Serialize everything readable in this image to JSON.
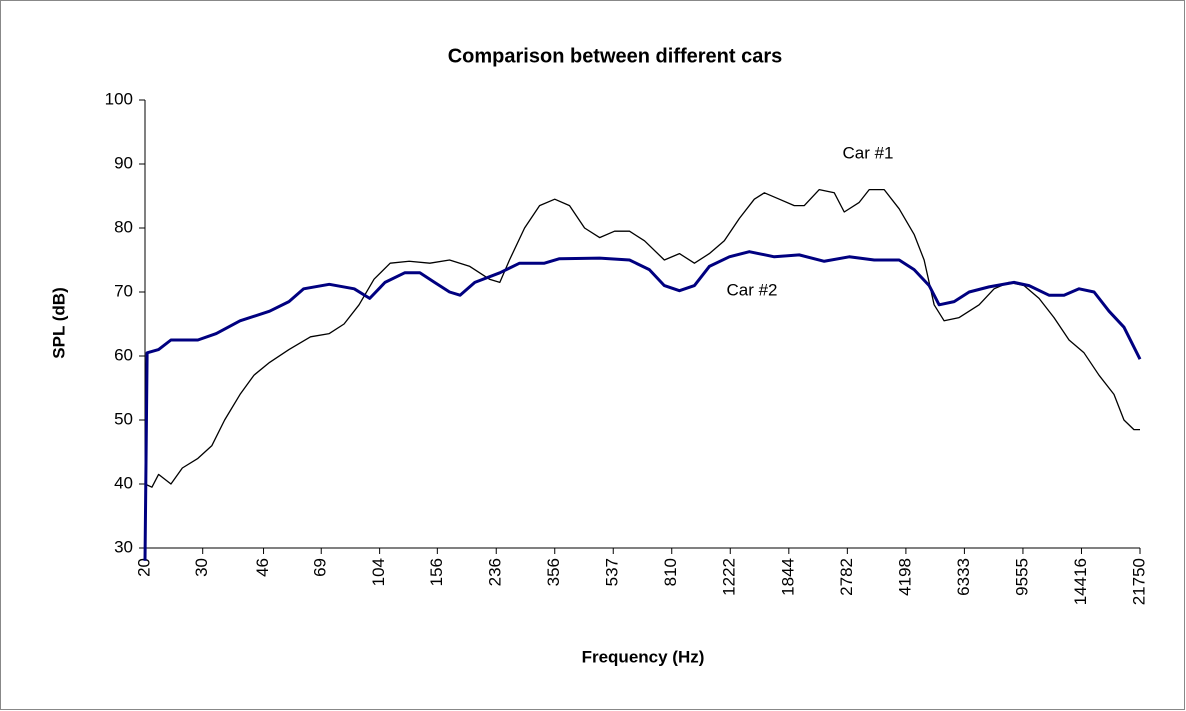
{
  "chart_data": {
    "type": "line",
    "title": "Comparison between different cars",
    "x_label": "Frequency (Hz)",
    "y_label": "SPL (dB)",
    "x_scale": "log",
    "xlim": [
      20,
      21750
    ],
    "xticks": [
      20,
      30,
      46,
      69,
      104,
      156,
      236,
      356,
      537,
      810,
      1222,
      1844,
      2782,
      4198,
      6333,
      9555,
      14416,
      21750
    ],
    "ylim": [
      30,
      100
    ],
    "yticks": [
      30,
      40,
      50,
      60,
      70,
      80,
      90,
      100
    ],
    "grid": false,
    "series": [
      {
        "name": "Car #1",
        "color": "#000000",
        "x": [
          20,
          21,
          22,
          24,
          26,
          29,
          32,
          35,
          39,
          43,
          48,
          55,
          64,
          73,
          81,
          90,
          100,
          112,
          128,
          148,
          170,
          196,
          225,
          242,
          259,
          288,
          320,
          356,
          395,
          439,
          488,
          542,
          602,
          669,
          769,
          855,
          950,
          1055,
          1172,
          1303,
          1447,
          1553,
          1725,
          1916,
          2056,
          2284,
          2538,
          2722,
          3024,
          3244,
          3604,
          4004,
          4448,
          4772,
          5120,
          5492,
          6102,
          7022,
          7802,
          8668,
          9632,
          10700,
          11888,
          13210,
          14676,
          16306,
          18116,
          19432,
          20840,
          21750
        ],
        "values": [
          40,
          39.5,
          41.5,
          40,
          42.5,
          44,
          46,
          50,
          54,
          57,
          59,
          61,
          63,
          63.5,
          65,
          68,
          72,
          74.5,
          74.8,
          74.5,
          75,
          74,
          72,
          71.5,
          75,
          80,
          83.5,
          84.5,
          83.5,
          80,
          78.5,
          79.5,
          79.5,
          78,
          75,
          76,
          74.5,
          76,
          78,
          81.5,
          84.5,
          85.5,
          84.5,
          83.5,
          83.5,
          86,
          85.5,
          82.5,
          84,
          86,
          86,
          83,
          79,
          75,
          68,
          65.5,
          66,
          68,
          70.5,
          71.5,
          71,
          69,
          66,
          62.5,
          60.5,
          57,
          54,
          50,
          48.5,
          48.5
        ]
      },
      {
        "name": "Car #2",
        "color": "#000080",
        "x": [
          20,
          20.3,
          22,
          24,
          29,
          33,
          39,
          48,
          55,
          61,
          73,
          87,
          97,
          108,
          124,
          138,
          153,
          170,
          183,
          203,
          242,
          278,
          331,
          368,
          488,
          602,
          692,
          769,
          855,
          950,
          1055,
          1214,
          1397,
          1665,
          1984,
          2365,
          2818,
          3360,
          4004,
          4448,
          4944,
          5302,
          5892,
          6548,
          7530,
          8978,
          9974,
          11472,
          12754,
          14176,
          15752,
          17496,
          19432,
          21750
        ],
        "values": [
          28,
          60.5,
          61,
          62.5,
          62.5,
          63.5,
          65.5,
          67,
          68.5,
          70.5,
          71.2,
          70.5,
          69,
          71.5,
          73,
          73,
          71.5,
          70,
          69.5,
          71.5,
          73,
          74.5,
          74.5,
          75.2,
          75.3,
          75,
          73.5,
          71,
          70.2,
          71,
          74,
          75.5,
          76.3,
          75.5,
          75.8,
          74.8,
          75.5,
          75,
          75,
          73.5,
          71,
          68,
          68.5,
          70,
          70.8,
          71.5,
          71,
          69.5,
          69.5,
          70.5,
          70,
          67,
          64.5,
          59.5
        ]
      }
    ]
  }
}
